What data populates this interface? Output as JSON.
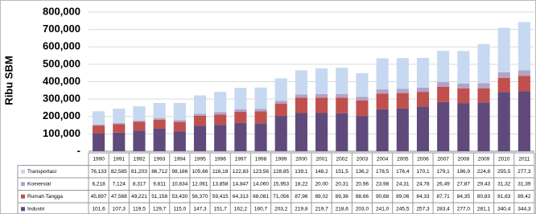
{
  "chart_data": {
    "type": "stacked-bar",
    "y_label": "Ribu SBM",
    "categories": [
      "1990",
      "1991",
      "1992",
      "1993",
      "1994",
      "1995",
      "1996",
      "1997",
      "1998",
      "1999",
      "2000",
      "2001",
      "2002",
      "2003",
      "2004",
      "2005",
      "2006",
      "2007",
      "2008",
      "2009",
      "2010",
      "2011"
    ],
    "ylim": [
      0,
      800000
    ],
    "yticks": [
      {
        "value": 0,
        "label": "-"
      },
      {
        "value": 100000,
        "label": "100,000"
      },
      {
        "value": 200000,
        "label": "200,000"
      },
      {
        "value": 300000,
        "label": "300,000"
      },
      {
        "value": 400000,
        "label": "400,000"
      },
      {
        "value": 500000,
        "label": "500,000"
      },
      {
        "value": 600000,
        "label": "600,000"
      },
      {
        "value": 700000,
        "label": "700,000"
      },
      {
        "value": 800000,
        "label": "800,000"
      }
    ],
    "grid": true,
    "series": [
      {
        "name": "Transportasi",
        "color": "#c6d9f1",
        "values": [
          76133,
          82585,
          81203,
          86712,
          98186,
          105660,
          116180,
          122830,
          123560,
          128850,
          139100,
          148200,
          151500,
          136200,
          178500,
          176400,
          170100,
          179100,
          186900,
          224800,
          255500,
          277300
        ],
        "value_labels": [
          "76,133",
          "82,585",
          "81,203",
          "86,712",
          "98,186",
          "105,66",
          "116,18",
          "122,83",
          "123,56",
          "128,85",
          "139,1",
          "148,2",
          "151,5",
          "136,2",
          "178,5",
          "176,4",
          "170,1",
          "179,1",
          "186,9",
          "224,8",
          "255,5",
          "277,3"
        ]
      },
      {
        "name": "Komersial",
        "color": "#b3a2c7",
        "values": [
          6218,
          7124,
          8317,
          9811,
          10834,
          12061,
          13858,
          14847,
          14060,
          15953,
          18220,
          20000,
          20310,
          20960,
          23980,
          24310,
          24780,
          26490,
          27870,
          29430,
          31320,
          31390
        ],
        "value_labels": [
          "6,218",
          "7,124",
          "8,317",
          "9,811",
          "10,834",
          "12,061",
          "13,858",
          "14,847",
          "14,060",
          "15,953",
          "18,22",
          "20,00",
          "20,31",
          "20,96",
          "23,98",
          "24,31",
          "24,78",
          "26,49",
          "27,87",
          "29,43",
          "31,32",
          "31,39"
        ]
      },
      {
        "name": "Rumah Tangga",
        "color": "#c0504d",
        "values": [
          45897,
          47568,
          49221,
          51158,
          53430,
          56370,
          59415,
          64313,
          68081,
          71056,
          87960,
          89020,
          89360,
          88660,
          90680,
          89060,
          84330,
          87710,
          84350,
          80830,
          81630,
          89420
        ],
        "value_labels": [
          "45,897",
          "47,568",
          "49,221",
          "51,158",
          "53,430",
          "56,370",
          "59,415",
          "64,313",
          "68,081",
          "71,056",
          "87,96",
          "89,02",
          "89,36",
          "88,66",
          "90,68",
          "89,06",
          "84,33",
          "87,71",
          "84,35",
          "80,83",
          "81,63",
          "89,42"
        ]
      },
      {
        "name": "Industri",
        "color": "#604a7b",
        "values": [
          101600,
          107300,
          119500,
          129700,
          115000,
          147300,
          151700,
          162200,
          160700,
          203200,
          219800,
          219700,
          218600,
          203000,
          241000,
          245500,
          257300,
          283400,
          277000,
          281100,
          340400,
          344300
        ],
        "value_labels": [
          "101,6",
          "107,3",
          "119,5",
          "129,7",
          "115,0",
          "147,3",
          "151,7",
          "162,2",
          "160,7",
          "203,2",
          "219,8",
          "219,7",
          "218,6",
          "203,0",
          "241,0",
          "245,5",
          "257,3",
          "283,4",
          "277,0",
          "281,1",
          "340,4",
          "344,3"
        ]
      }
    ]
  }
}
